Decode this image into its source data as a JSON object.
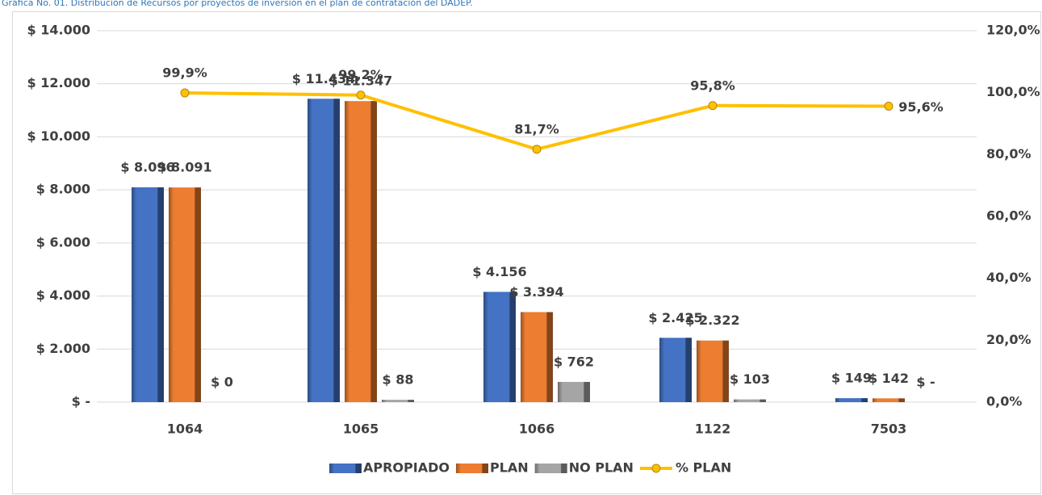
{
  "chart_data": {
    "type": "bar",
    "title": "Gráfica No. 01. Distribución de Recursos por proyectos de inversión en el plan de contratación del DADEP.",
    "categories": [
      "1064",
      "1065",
      "1066",
      "1122",
      "7503"
    ],
    "series": [
      {
        "name": "APROPIADO",
        "color": "#4472c4",
        "values": [
          8096,
          11434,
          4156,
          2425,
          149
        ],
        "value_labels": [
          "$ 8.096",
          "$ 11.434",
          "$ 4.156",
          "$ 2.425",
          "$ 149"
        ]
      },
      {
        "name": "PLAN",
        "color": "#ed7d31",
        "values": [
          8091,
          11347,
          3394,
          2322,
          142
        ],
        "value_labels": [
          "$ 8.091",
          "$ 11.347",
          "$ 3.394",
          "$ 2.322",
          "$ 142"
        ]
      },
      {
        "name": "NO PLAN",
        "color": "#a5a5a5",
        "values": [
          0,
          88,
          762,
          103,
          0
        ],
        "value_labels": [
          "$ 0",
          "$ 88",
          "$ 762",
          "$ 103",
          "$ -"
        ]
      },
      {
        "name": "% PLAN",
        "type": "line",
        "axis": "y2",
        "color": "#ffc000",
        "values": [
          99.9,
          99.2,
          81.7,
          95.8,
          95.6
        ],
        "value_labels": [
          "99,9%",
          "99,2%",
          "81,7%",
          "95,8%",
          "95,6%"
        ]
      }
    ],
    "ylim": [
      0,
      14000
    ],
    "yticks": [
      {
        "value": 0,
        "label": "$ -"
      },
      {
        "value": 2000,
        "label": "$ 2.000"
      },
      {
        "value": 4000,
        "label": "$ 4.000"
      },
      {
        "value": 6000,
        "label": "$ 6.000"
      },
      {
        "value": 8000,
        "label": "$ 8.000"
      },
      {
        "value": 10000,
        "label": "$ 10.000"
      },
      {
        "value": 12000,
        "label": "$ 12.000"
      },
      {
        "value": 14000,
        "label": "$ 14.000"
      }
    ],
    "y2lim": [
      0,
      120
    ],
    "y2ticks": [
      {
        "value": 0,
        "label": "0,0%"
      },
      {
        "value": 20,
        "label": "20,0%"
      },
      {
        "value": 40,
        "label": "40,0%"
      },
      {
        "value": 60,
        "label": "60,0%"
      },
      {
        "value": 80,
        "label": "80,0%"
      },
      {
        "value": 100,
        "label": "100,0%"
      },
      {
        "value": 120,
        "label": "120,0%"
      }
    ],
    "grid": true,
    "legend": "bottom"
  }
}
